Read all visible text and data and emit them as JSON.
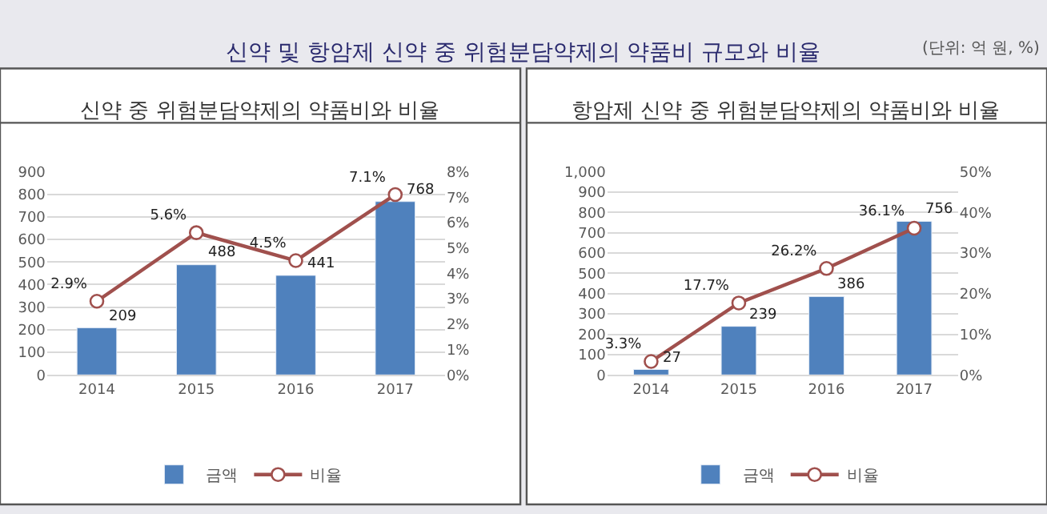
{
  "chart_data": [
    {
      "type": "bar",
      "title": "신약 중 위험분담약제의 약품비와 비율",
      "annotations": [
        "신약 및 항암제 신약 중 위험분담약제의 약품비 규모와 비율",
        "(단위: 억 원, %)"
      ],
      "categories": [
        "2014",
        "2015",
        "2016",
        "2017"
      ],
      "series": [
        {
          "name": "금액",
          "color": "#4f81bd",
          "values": [
            209,
            488,
            441,
            768
          ],
          "value_labels": [
            "209",
            "488",
            "441",
            "768"
          ]
        },
        {
          "name": "비율",
          "type": "line",
          "axis": "y2",
          "color": "#a0504d",
          "marker": "circle",
          "values": [
            2.9,
            5.6,
            4.5,
            7.1
          ],
          "value_labels": [
            "2.9%",
            "5.6%",
            "4.5%",
            "7.1%"
          ]
        }
      ],
      "ylim": [
        0,
        900
      ],
      "yticks": [
        0,
        100,
        200,
        300,
        400,
        500,
        600,
        700,
        800,
        900
      ],
      "y2lim": [
        0,
        8
      ],
      "y2ticks": [
        {
          "value": 0,
          "label": "0%"
        },
        {
          "value": 1,
          "label": "1%"
        },
        {
          "value": 2,
          "label": "2%"
        },
        {
          "value": 3,
          "label": "3%"
        },
        {
          "value": 4,
          "label": "4%"
        },
        {
          "value": 5,
          "label": "5%"
        },
        {
          "value": 6,
          "label": "6%"
        },
        {
          "value": 7,
          "label": "7%"
        },
        {
          "value": 8,
          "label": "8%"
        }
      ],
      "grid": "y",
      "legend": "bottom"
    },
    {
      "type": "bar",
      "title": "항암제 신약 중 위험분담약제의 약품비와 비율",
      "categories": [
        "2014",
        "2015",
        "2016",
        "2017"
      ],
      "series": [
        {
          "name": "금액",
          "color": "#4f81bd",
          "values": [
            27,
            239,
            386,
            756
          ],
          "value_labels": [
            "27",
            "239",
            "386",
            "756"
          ]
        },
        {
          "name": "비율",
          "type": "line",
          "axis": "y2",
          "color": "#a0504d",
          "marker": "circle",
          "values": [
            3.3,
            17.7,
            26.2,
            36.1
          ],
          "value_labels": [
            "3.3%",
            "17.7%",
            "26.2%",
            "36.1%"
          ]
        }
      ],
      "ylim": [
        0,
        1000
      ],
      "yticks": [
        0,
        100,
        200,
        300,
        400,
        500,
        600,
        700,
        800,
        900,
        {
          "value": 1000,
          "label": "1,000"
        }
      ],
      "y2lim": [
        0,
        50
      ],
      "y2ticks": [
        {
          "value": 0,
          "label": "0%"
        },
        {
          "value": 10,
          "label": "10%"
        },
        {
          "value": 20,
          "label": "20%"
        },
        {
          "value": 30,
          "label": "30%"
        },
        {
          "value": 40,
          "label": "40%"
        },
        {
          "value": 50,
          "label": "50%"
        }
      ],
      "grid": "y",
      "legend": "bottom"
    }
  ]
}
